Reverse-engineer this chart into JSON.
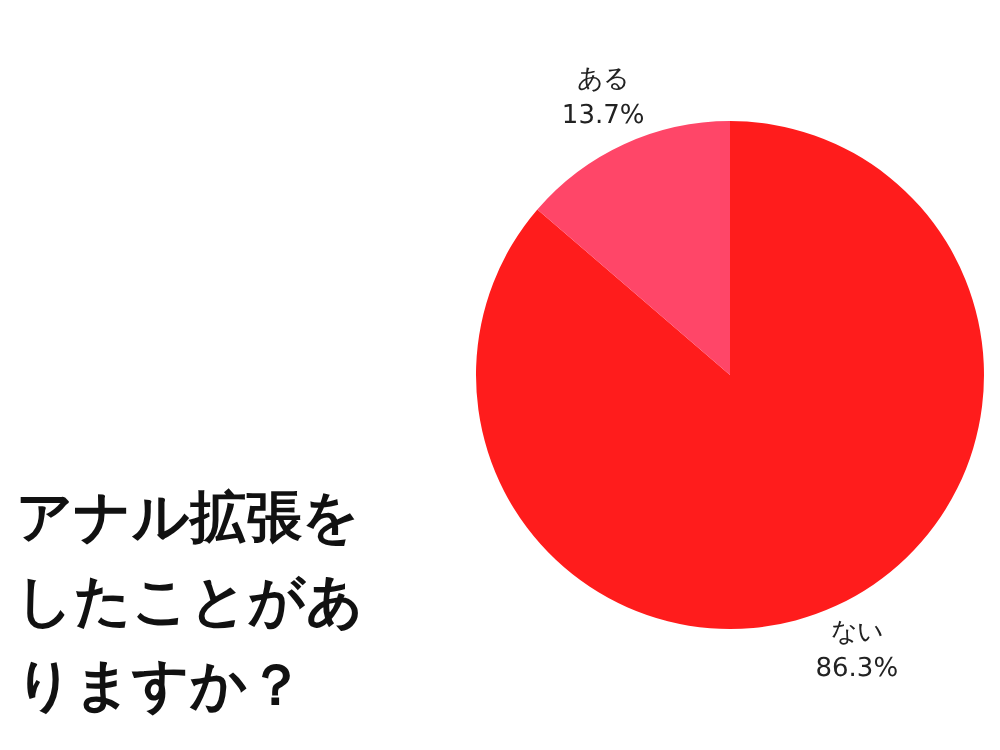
{
  "chart_data": {
    "type": "pie",
    "title": "アナル拡張をしたことがありますか？",
    "categories": [
      "ない",
      "ある"
    ],
    "values": [
      86.3,
      13.7
    ],
    "colors": [
      "#ff1c1c",
      "#ff4668"
    ],
    "value_labels": [
      "86.3%",
      "13.7%"
    ],
    "legend": false
  }
}
